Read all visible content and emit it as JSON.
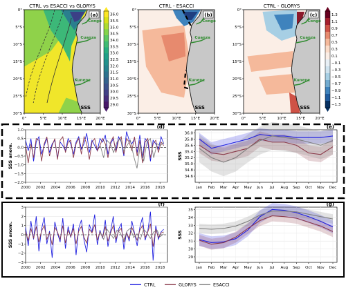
{
  "maps": {
    "a": {
      "title": "CTRL vs ESACCI vs GLORYS",
      "panel": "(a)"
    },
    "b": {
      "title": "CTRL - ESACCI",
      "panel": "(b)"
    },
    "c": {
      "title": "CTRL - GLORYS",
      "panel": "(c)"
    },
    "lat_labels": [
      "0°",
      "5°S",
      "10°S",
      "15°S",
      "20°S",
      "25°S",
      "30°S"
    ],
    "lon_labels": [
      "0°",
      "5°E",
      "10°E",
      "15°E",
      "20°E"
    ],
    "rivers": {
      "congo": "Congo",
      "cuanza": "Cuanza",
      "kunene": "Kunene"
    },
    "var_label": "SSS",
    "colors": {
      "land": "#c8c8c8",
      "river": "#2e8b2e",
      "coast": "#111111"
    }
  },
  "colorbar_a": {
    "ticks": [
      "36.0",
      "35.5",
      "35.0",
      "34.5",
      "34.0",
      "33.5",
      "33.0",
      "32.5",
      "32.0",
      "31.5",
      "31.0",
      "30.5",
      "30.0",
      "29.5",
      "29.0"
    ],
    "colors": [
      "#fde725",
      "#d8e219",
      "#addc30",
      "#84d44b",
      "#5ec962",
      "#3fbc73",
      "#28ae80",
      "#1fa088",
      "#21918c",
      "#26828e",
      "#2c728e",
      "#33638d",
      "#3b528b",
      "#424086",
      "#472d7b",
      "#48186a"
    ]
  },
  "colorbar_diff": {
    "ticks": [
      "1.3",
      "1.1",
      "0.9",
      "0.7",
      "0.5",
      "0.3",
      "0.1",
      "−0.1",
      "−0.3",
      "−0.5",
      "−0.7",
      "−0.9",
      "−1.1",
      "−1.3"
    ],
    "colors": [
      "#67001f",
      "#a51f2d",
      "#cf5246",
      "#e78a6e",
      "#f5b99b",
      "#fbdcc9",
      "#fbeee6",
      "#e8f0f6",
      "#cfe3ef",
      "#a7cfe4",
      "#72abd0",
      "#3f83bd",
      "#1f5b9e",
      "#053061"
    ]
  },
  "chart_data": [
    {
      "type": "line",
      "panel": "(d)",
      "ylabel": "SSS anom.",
      "ylim": [
        -2.0,
        1.0
      ],
      "yticks": [
        "1.0",
        "0.5",
        "0.0",
        "−0.5",
        "−1.0",
        "−1.5",
        "−2.0"
      ],
      "xticks": [
        "2000",
        "2002",
        "2004",
        "2006",
        "2008",
        "2010",
        "2012",
        "2014",
        "2016",
        "2018"
      ],
      "series": [
        {
          "name": "CTRL",
          "values": [
            0.4,
            -0.2,
            0.5,
            -0.8,
            0.3,
            0.6,
            -0.4,
            0.1,
            0.5,
            -0.3,
            0.2,
            0.4,
            -0.6,
            0.3,
            0.1,
            -0.2,
            0.5,
            0.2,
            -0.4,
            0.3,
            0.6,
            -0.1,
            0.2,
            0.8,
            -0.3,
            0.4,
            0.1,
            -0.2,
            0.5,
            0.3,
            0.7,
            -0.4,
            0.2,
            0.5,
            -0.2,
            0.6,
            0.3,
            -0.5,
            0.9,
            0.4,
            0.2,
            0.5,
            -0.3,
            0.7,
            -0.6,
            0.5,
            0.3,
            -0.8,
            0.4,
            0.2,
            -0.1,
            0.6,
            0.2
          ]
        },
        {
          "name": "GLORYS",
          "values": [
            0.1,
            -0.9,
            0.2,
            -0.6,
            0.5,
            0.4,
            -0.8,
            0.2,
            0.6,
            -0.5,
            0.1,
            0.5,
            -0.7,
            0.4,
            0.6,
            -0.3,
            0.3,
            0.4,
            -0.6,
            0.2,
            0.5,
            -0.4,
            0.6,
            0.2,
            -0.7,
            0.3,
            0.5,
            -0.2,
            0.1,
            0.5,
            0.2,
            -0.6,
            0.3,
            0.6,
            -0.3,
            0.4,
            0.6,
            -0.4,
            0.5,
            0.3,
            -0.2,
            0.6,
            -0.5,
            0.4,
            -0.9,
            0.3,
            0.5,
            -0.6,
            0.2,
            0.4,
            -0.3,
            0.3,
            0.1
          ]
        },
        {
          "name": "ESACCI",
          "x_start": 2010.0,
          "values": [
            0.1,
            -0.6,
            0.4,
            0.2,
            -0.3,
            0.3,
            0.5,
            -0.2,
            0.1,
            0.4,
            -0.5,
            -1.2,
            0.2,
            -0.8,
            0.3,
            0.5,
            -0.6,
            0.2,
            0.1,
            0.3
          ]
        }
      ]
    },
    {
      "type": "line",
      "panel": "(e)",
      "ylabel": "SSS",
      "ylim": [
        34.4,
        36.1
      ],
      "yticks": [
        "36.0",
        "35.8",
        "35.6",
        "35.4",
        "35.2",
        "35.0",
        "34.8",
        "34.6"
      ],
      "categories": [
        "Jan",
        "Feb",
        "Mar",
        "Apr",
        "May",
        "Jun",
        "Jul",
        "Aug",
        "Sep",
        "Oct",
        "Nov",
        "Dec"
      ],
      "series": [
        {
          "name": "CTRL",
          "values": [
            35.8,
            35.5,
            35.6,
            35.7,
            35.8,
            35.95,
            35.9,
            35.9,
            35.85,
            35.85,
            35.85,
            35.9
          ],
          "spread": 0.2
        },
        {
          "name": "GLORYS",
          "values": [
            35.6,
            35.35,
            35.3,
            35.4,
            35.5,
            35.8,
            35.7,
            35.7,
            35.6,
            35.35,
            35.3,
            35.55
          ],
          "spread": 0.25
        },
        {
          "name": "ESACCI",
          "values": [
            35.5,
            35.2,
            35.05,
            35.2,
            35.5,
            35.75,
            35.9,
            35.85,
            35.8,
            35.7,
            35.6,
            35.75
          ],
          "spread": 0.45
        }
      ]
    },
    {
      "type": "line",
      "panel": "(f)",
      "ylabel": "SSS anom.",
      "ylim": [
        -3,
        3
      ],
      "yticks": [
        "3",
        "2",
        "1",
        "0",
        "−1",
        "−2",
        "−3"
      ],
      "xticks": [
        "2000",
        "2002",
        "2004",
        "2006",
        "2008",
        "2010",
        "2012",
        "2014",
        "2016",
        "2018"
      ],
      "series": [
        {
          "name": "CTRL",
          "values": [
            0.8,
            -1.2,
            1.5,
            -0.5,
            2.0,
            -1.8,
            0.6,
            1.9,
            -1.0,
            0.4,
            -2.5,
            1.4,
            0.2,
            -0.8,
            1.8,
            -1.5,
            0.9,
            -0.3,
            1.2,
            -2.2,
            0.7,
            1.6,
            -0.6,
            -1.9,
            1.1,
            0.3,
            2.2,
            -1.1,
            0.5,
            -0.4,
            1.6,
            -1.3,
            0.4,
            2.0,
            -0.9,
            0.6,
            1.2,
            -1.6,
            0.3,
            -0.7,
            1.5,
            0.2,
            -1.2,
            0.8,
            1.9,
            -0.6,
            0.4,
            2.5,
            -2.8,
            1.0,
            -0.5,
            0.3,
            0.6
          ]
        },
        {
          "name": "GLORYS",
          "values": [
            0.3,
            -0.6,
            0.7,
            -0.4,
            0.9,
            -0.8,
            0.4,
            1.0,
            -0.5,
            0.2,
            -1.1,
            0.8,
            0.3,
            -0.5,
            1.0,
            -0.9,
            0.5,
            -0.2,
            0.7,
            -1.0,
            0.4,
            0.9,
            -0.3,
            -0.9,
            0.6,
            0.2,
            1.1,
            -0.6,
            0.3,
            -0.3,
            0.9,
            -0.7,
            0.2,
            1.0,
            -0.5,
            0.4,
            0.7,
            -0.8,
            0.2,
            -0.4,
            0.8,
            0.1,
            -0.6,
            0.5,
            1.0,
            -0.3,
            0.3,
            1.2,
            -1.3,
            0.6,
            -0.3,
            0.2,
            0.3
          ]
        },
        {
          "name": "ESACCI",
          "x_start": 2010.0,
          "values": [
            0.3,
            -0.5,
            0.6,
            0.1,
            -0.4,
            0.5,
            0.2,
            -0.6,
            0.4,
            0.7,
            -0.3,
            0.1,
            -0.5,
            0.6,
            0.2,
            -0.4,
            0.3,
            0.5,
            -0.2,
            0.1
          ]
        }
      ]
    },
    {
      "type": "line",
      "panel": "(g)",
      "ylabel": "SSS",
      "ylim": [
        28.3,
        35.3
      ],
      "yticks": [
        "35",
        "34",
        "33",
        "32",
        "31",
        "30",
        "29"
      ],
      "categories": [
        "Jan",
        "Feb",
        "Mar",
        "Apr",
        "May",
        "Jun",
        "Jul",
        "Aug",
        "Sep",
        "Oct",
        "Nov",
        "Dec"
      ],
      "series": [
        {
          "name": "CTRL",
          "values": [
            31.2,
            30.8,
            30.9,
            31.3,
            32.4,
            34.1,
            35.0,
            34.9,
            34.6,
            34.1,
            33.5,
            32.8
          ],
          "spread": 0.8
        },
        {
          "name": "GLORYS",
          "values": [
            31.1,
            30.6,
            30.8,
            31.5,
            32.6,
            33.6,
            34.2,
            34.1,
            33.9,
            33.4,
            32.9,
            32.2
          ],
          "spread": 0.7
        },
        {
          "name": "ESACCI",
          "values": [
            32.6,
            32.5,
            32.6,
            32.9,
            33.5,
            34.3,
            34.8,
            34.8,
            34.7,
            34.4,
            34.1,
            33.8
          ],
          "spread": 0.6
        }
      ]
    }
  ],
  "legend": {
    "items": [
      {
        "name": "CTRL",
        "color": "#1f1fe0"
      },
      {
        "name": "GLORYS",
        "color": "#8b3a4a"
      },
      {
        "name": "ESACCI",
        "color": "#7f7f7f"
      }
    ]
  },
  "series_colors": {
    "CTRL": "#1f1fe0",
    "GLORYS": "#8b3a4a",
    "ESACCI": "#7f7f7f"
  }
}
